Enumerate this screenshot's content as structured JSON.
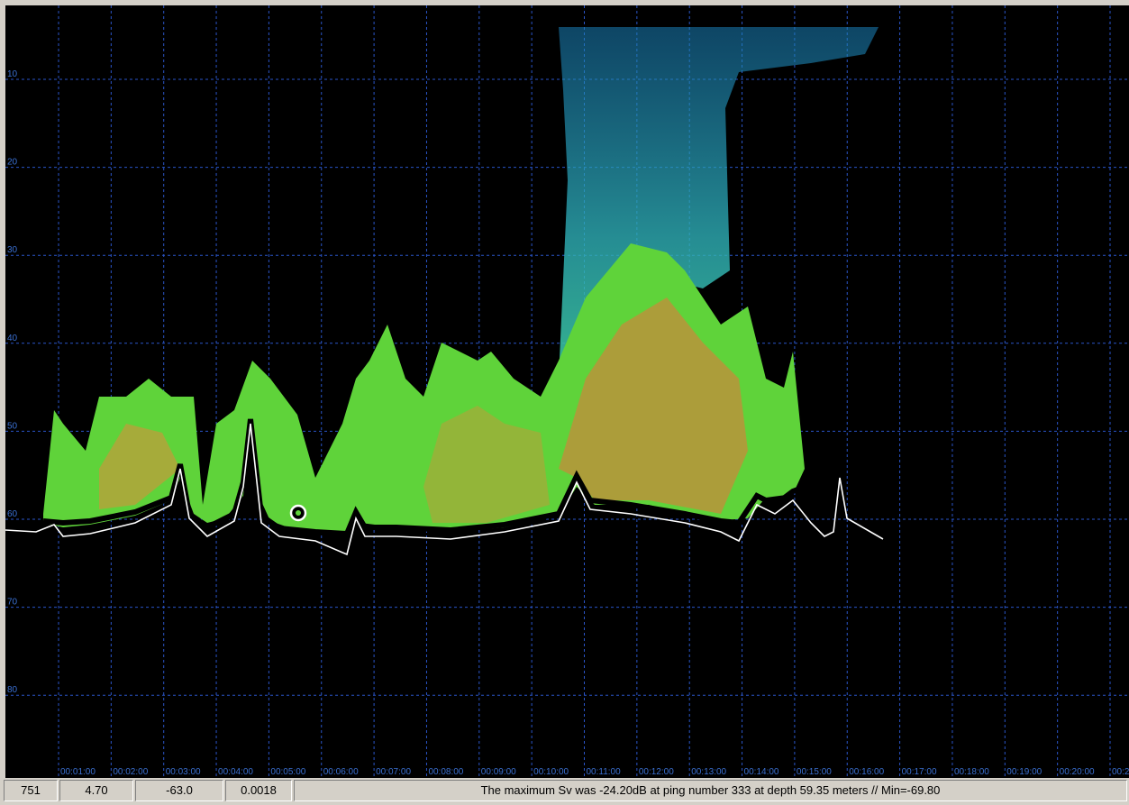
{
  "echogram": {
    "depth_labels": [
      "10",
      "20",
      "30",
      "40",
      "50",
      "60",
      "70",
      "80"
    ],
    "time_labels": [
      "00:01:00",
      "00:02:00",
      "00:03:00",
      "00:04:00",
      "00:05:00",
      "00:06:00",
      "00:07:00",
      "00:08:00",
      "00:09:00",
      "00:10:00",
      "00:11:00",
      "00:12:00",
      "00:13:00",
      "00:14:00",
      "00:15:00",
      "00:16:00",
      "00:17:00",
      "00:18:00",
      "00:19:00",
      "00:20:00",
      "00:2"
    ]
  },
  "status_bar": {
    "cells": [
      "751",
      "4.70",
      "-63.0",
      "0.0018"
    ],
    "message": "The maximum Sv was -24.20dB at ping number 333 at depth 59.35 meters // Min=-69.80"
  }
}
